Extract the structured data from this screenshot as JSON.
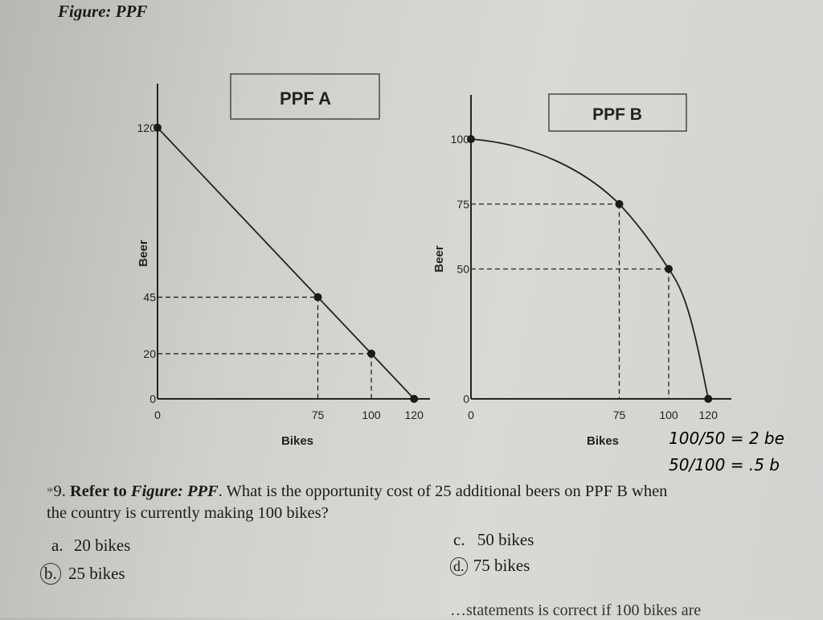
{
  "figure_title": "Figure: PPF",
  "chart_data": [
    {
      "type": "line",
      "title": "PPF A",
      "xlabel": "Bikes",
      "ylabel": "Beer",
      "x_ticks": [
        "0",
        "75",
        "100",
        "120"
      ],
      "y_ticks": [
        "0",
        "20",
        "45",
        "120"
      ],
      "points": [
        {
          "x": 0,
          "y": 120
        },
        {
          "x": 75,
          "y": 45
        },
        {
          "x": 100,
          "y": 20
        },
        {
          "x": 120,
          "y": 0
        }
      ],
      "curve": "straight"
    },
    {
      "type": "line",
      "title": "PPF B",
      "xlabel": "Bikes",
      "ylabel": "Beer",
      "x_ticks": [
        "0",
        "75",
        "100",
        "120"
      ],
      "y_ticks": [
        "0",
        "50",
        "75",
        "100"
      ],
      "points": [
        {
          "x": 0,
          "y": 100
        },
        {
          "x": 75,
          "y": 75
        },
        {
          "x": 100,
          "y": 50
        },
        {
          "x": 120,
          "y": 0
        }
      ],
      "curve": "concave"
    }
  ],
  "handwriting": {
    "line1": "100/50 = 2 be",
    "line2": "50/100 = .5 b"
  },
  "question": {
    "marker": "*",
    "number": "9.",
    "lead": "Refer to",
    "figure_ref": "Figure: PPF",
    "text_a": ". What is the opportunity cost of 25 additional beers on PPF B when",
    "text_b": "the country is currently making 100 bikes?"
  },
  "options": {
    "a_letter": "a.",
    "a_text": "20 bikes",
    "b_letter": "b.",
    "b_text": "25 bikes",
    "c_letter": "c.",
    "c_text": "50 bikes",
    "d_letter": "d.",
    "d_text": "75 bikes"
  },
  "next_question_fragment": "…statements is correct if 100 bikes are"
}
